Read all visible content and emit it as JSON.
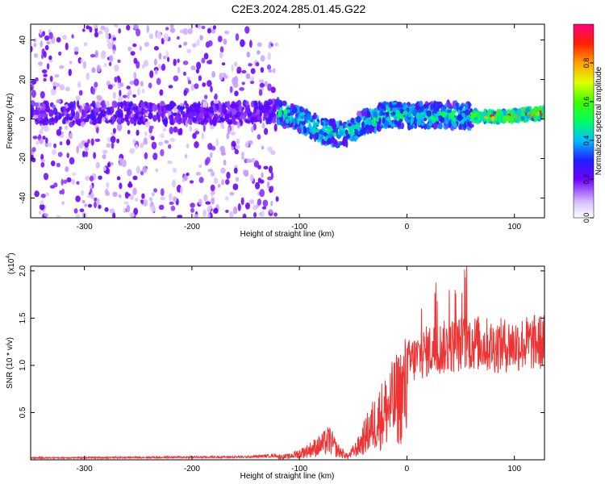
{
  "title": "C2E3.2024.285.01.45.G22",
  "chart_data": [
    {
      "type": "heatmap",
      "xlabel": "Height of straight line (km)",
      "ylabel": "Frequency (Hz)",
      "xlim": [
        -350,
        128
      ],
      "ylim": [
        -50,
        48
      ],
      "x_ticks": [
        -300,
        -200,
        -100,
        0,
        100
      ],
      "y_ticks": [
        -40,
        -20,
        0,
        20,
        40
      ],
      "colorbar": {
        "label": "Normalized spectral amplitude",
        "range": [
          0,
          1
        ],
        "ticks": [
          "0.0",
          "0.2",
          "0.4",
          "0.6",
          "0.8"
        ],
        "tick_values": [
          0,
          0.2,
          0.4,
          0.6,
          0.8
        ]
      },
      "ridge": [
        {
          "x": -350,
          "freq": 3
        },
        {
          "x": -250,
          "freq": 3
        },
        {
          "x": -150,
          "freq": 3
        },
        {
          "x": -120,
          "freq": 4
        },
        {
          "x": -100,
          "freq": 0
        },
        {
          "x": -80,
          "freq": -6
        },
        {
          "x": -60,
          "freq": -8
        },
        {
          "x": -40,
          "freq": -2
        },
        {
          "x": -20,
          "freq": 2
        },
        {
          "x": 0,
          "freq": 2
        },
        {
          "x": 40,
          "freq": 2
        },
        {
          "x": 80,
          "freq": 1
        },
        {
          "x": 128,
          "freq": 3
        }
      ]
    },
    {
      "type": "line",
      "xlabel": "Height of straight line (km)",
      "ylabel": "SNR (10 * v/v)",
      "y_multiplier": "(x10",
      "y_multiplier_exp": "4",
      "y_multiplier_close": ")",
      "xlim": [
        -350,
        128
      ],
      "ylim": [
        0,
        2.05
      ],
      "x_ticks": [
        -300,
        -200,
        -100,
        0,
        100
      ],
      "y_ticks": [
        "0.5",
        "1.0",
        "1.5",
        "2.0"
      ],
      "y_tick_values": [
        0.5,
        1.0,
        1.5,
        2.0
      ],
      "series": [
        {
          "color": "#ee3333",
          "envelope": [
            {
              "x": -350,
              "y": 0.02
            },
            {
              "x": -150,
              "y": 0.03
            },
            {
              "x": -110,
              "y": 0.05
            },
            {
              "x": -95,
              "y": 0.12
            },
            {
              "x": -80,
              "y": 0.22
            },
            {
              "x": -72,
              "y": 0.3
            },
            {
              "x": -65,
              "y": 0.15
            },
            {
              "x": -55,
              "y": 0.05
            },
            {
              "x": -45,
              "y": 0.2
            },
            {
              "x": -35,
              "y": 0.45
            },
            {
              "x": -25,
              "y": 0.65
            },
            {
              "x": -10,
              "y": 0.9
            },
            {
              "x": 0,
              "y": 1.1
            },
            {
              "x": 20,
              "y": 1.25
            },
            {
              "x": 40,
              "y": 1.3
            },
            {
              "x": 60,
              "y": 1.35
            },
            {
              "x": 80,
              "y": 1.3
            },
            {
              "x": 100,
              "y": 1.32
            },
            {
              "x": 128,
              "y": 1.35
            }
          ]
        }
      ]
    }
  ]
}
